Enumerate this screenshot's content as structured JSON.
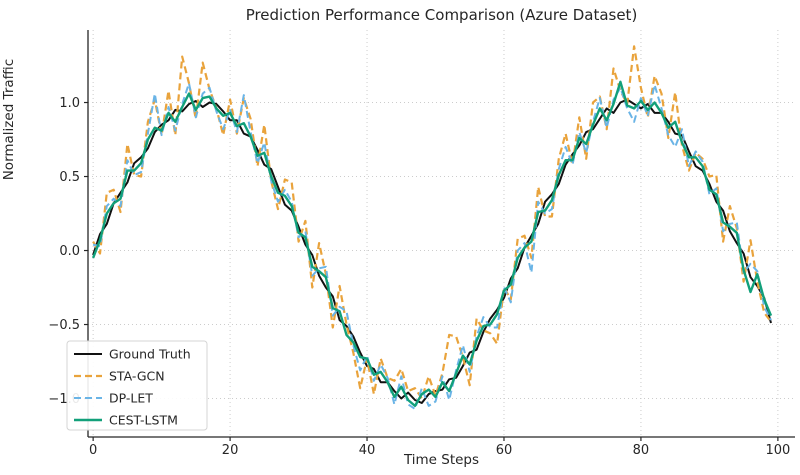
{
  "figure": {
    "title": "Prediction Performance Comparison (Azure Dataset)"
  },
  "chart_data": {
    "type": "line",
    "title": "Prediction Performance Comparison (Azure Dataset)",
    "xlabel": "Time Steps",
    "ylabel": "Normalized Traffic",
    "xlim": [
      -0.75,
      102.5
    ],
    "ylim": [
      -1.26,
      1.49
    ],
    "xticks": [
      0,
      20,
      40,
      60,
      80,
      100
    ],
    "xtick_labels": [
      "0",
      "20",
      "40",
      "60",
      "80",
      "100"
    ],
    "yticks": [
      -1.0,
      -0.5,
      0.0,
      0.5,
      1.0
    ],
    "ytick_labels": [
      "−1.0",
      "−0.5",
      "0.0",
      "0.5",
      "1.0"
    ],
    "grid": true,
    "grid_style": "dotted",
    "grid_color": "#cccccc",
    "axis_color": "#262626",
    "background": "#ffffff",
    "legend_position": "lower-left",
    "x": [
      0,
      1,
      2,
      3,
      4,
      5,
      6,
      7,
      8,
      9,
      10,
      11,
      12,
      13,
      14,
      15,
      16,
      17,
      18,
      19,
      20,
      21,
      22,
      23,
      24,
      25,
      26,
      27,
      28,
      29,
      30,
      31,
      32,
      33,
      34,
      35,
      36,
      37,
      38,
      39,
      40,
      41,
      42,
      43,
      44,
      45,
      46,
      47,
      48,
      49,
      50,
      51,
      52,
      53,
      54,
      55,
      56,
      57,
      58,
      59,
      60,
      61,
      62,
      63,
      64,
      65,
      66,
      67,
      68,
      69,
      70,
      71,
      72,
      73,
      74,
      75,
      76,
      77,
      78,
      79,
      80,
      81,
      82,
      83,
      84,
      85,
      86,
      87,
      88,
      89,
      90,
      91,
      92,
      93,
      94,
      95,
      96,
      97,
      98,
      99
    ],
    "series": [
      {
        "name": "Ground Truth",
        "color": "#111111",
        "style": "solid",
        "width": 2,
        "values": [
          -0.03,
          0.11,
          0.18,
          0.32,
          0.39,
          0.46,
          0.59,
          0.63,
          0.69,
          0.8,
          0.85,
          0.88,
          0.95,
          0.94,
          0.99,
          1.01,
          0.97,
          1.0,
          0.99,
          0.94,
          0.88,
          0.88,
          0.79,
          0.77,
          0.68,
          0.58,
          0.55,
          0.43,
          0.31,
          0.27,
          0.16,
          0.04,
          -0.03,
          -0.17,
          -0.25,
          -0.31,
          -0.47,
          -0.51,
          -0.58,
          -0.69,
          -0.78,
          -0.8,
          -0.89,
          -0.89,
          -0.95,
          -1.0,
          -0.96,
          -1.01,
          -1.03,
          -0.97,
          -0.95,
          -0.94,
          -0.87,
          -0.86,
          -0.78,
          -0.69,
          -0.67,
          -0.55,
          -0.46,
          -0.4,
          -0.32,
          -0.19,
          -0.12,
          0.02,
          0.1,
          0.18,
          0.33,
          0.38,
          0.45,
          0.58,
          0.65,
          0.71,
          0.8,
          0.82,
          0.89,
          0.96,
          0.93,
          1.0,
          1.02,
          0.99,
          0.96,
          0.99,
          0.93,
          0.93,
          0.87,
          0.79,
          0.78,
          0.67,
          0.57,
          0.54,
          0.45,
          0.33,
          0.27,
          0.13,
          0.05,
          -0.02,
          -0.18,
          -0.24,
          -0.32,
          -0.49
        ]
      },
      {
        "name": "STA-GCN",
        "color": "#E9A33C",
        "style": "dashed",
        "width": 2.2,
        "values": [
          0.06,
          -0.02,
          0.39,
          0.41,
          0.26,
          0.72,
          0.51,
          0.5,
          0.87,
          1.02,
          0.78,
          1.08,
          0.78,
          1.31,
          1.13,
          0.89,
          1.27,
          1.09,
          0.96,
          0.78,
          1.02,
          0.79,
          1.03,
          0.89,
          0.57,
          0.85,
          0.47,
          0.28,
          0.48,
          0.46,
          0.06,
          0.2,
          -0.25,
          0.05,
          -0.16,
          -0.52,
          -0.24,
          -0.5,
          -0.69,
          -0.93,
          -0.73,
          -0.97,
          -0.73,
          -0.86,
          -0.88,
          -0.8,
          -0.95,
          -0.93,
          -1.0,
          -0.85,
          -0.98,
          -0.83,
          -0.57,
          -0.58,
          -0.72,
          -0.91,
          -0.46,
          -0.54,
          -0.56,
          -0.63,
          -0.25,
          -0.33,
          0.08,
          0.1,
          -0.05,
          0.43,
          0.23,
          0.23,
          0.62,
          0.79,
          0.58,
          0.9,
          0.62,
          1.0,
          1.04,
          0.82,
          1.23,
          1.08,
          0.99,
          1.38,
          1.1,
          0.9,
          1.18,
          1.06,
          0.76,
          1.07,
          0.71,
          0.54,
          0.66,
          0.62,
          0.5,
          0.51,
          0.06,
          0.3,
          0.15,
          -0.21,
          0.07,
          -0.21,
          -0.42,
          -0.48
        ]
      },
      {
        "name": "DP-LET",
        "color": "#6AB4E6",
        "style": "dashed",
        "width": 2,
        "values": [
          0.04,
          0.03,
          0.3,
          0.35,
          0.3,
          0.61,
          0.51,
          0.53,
          0.79,
          1.06,
          0.78,
          0.97,
          0.81,
          0.99,
          1.13,
          0.9,
          1.06,
          1.1,
          0.94,
          0.82,
          0.95,
          0.8,
          1.05,
          0.8,
          0.59,
          0.73,
          0.47,
          0.33,
          0.41,
          0.33,
          0.09,
          0.13,
          -0.17,
          -0.12,
          -0.11,
          -0.44,
          -0.38,
          -0.41,
          -0.64,
          -0.81,
          -0.71,
          -0.88,
          -0.77,
          -0.86,
          -1.04,
          -0.85,
          -1.04,
          -1.07,
          -0.93,
          -1.05,
          -1.02,
          -0.85,
          -1.01,
          -0.81,
          -0.64,
          -0.82,
          -0.58,
          -0.45,
          -0.52,
          -0.52,
          -0.25,
          -0.35,
          0.0,
          0.05,
          -0.15,
          0.33,
          0.25,
          0.28,
          0.55,
          0.7,
          0.58,
          0.8,
          0.66,
          0.87,
          1.03,
          0.83,
          1.02,
          1.1,
          0.96,
          0.87,
          1.03,
          0.91,
          1.12,
          0.96,
          0.78,
          0.7,
          0.82,
          0.57,
          0.67,
          0.6,
          0.38,
          0.42,
          0.13,
          0.18,
          0.19,
          -0.15,
          -0.09,
          -0.14,
          -0.38,
          -0.47
        ]
      },
      {
        "name": "CEST-LSTM",
        "color": "#12A07A",
        "style": "solid",
        "width": 2.4,
        "values": [
          -0.05,
          0.07,
          0.25,
          0.32,
          0.35,
          0.54,
          0.54,
          0.59,
          0.75,
          0.83,
          0.81,
          0.93,
          0.87,
          0.97,
          1.06,
          0.95,
          1.03,
          1.04,
          0.96,
          0.91,
          0.93,
          0.84,
          0.86,
          0.77,
          0.64,
          0.66,
          0.5,
          0.39,
          0.37,
          0.3,
          0.12,
          0.09,
          -0.11,
          -0.14,
          -0.18,
          -0.39,
          -0.41,
          -0.57,
          -0.62,
          -0.72,
          -0.73,
          -0.84,
          -0.82,
          -0.89,
          -0.99,
          -0.92,
          -1.01,
          -1.05,
          -0.97,
          -0.94,
          -0.99,
          -0.89,
          -0.95,
          -0.83,
          -0.71,
          -0.77,
          -0.61,
          -0.51,
          -0.5,
          -0.43,
          -0.27,
          -0.23,
          -0.05,
          0.02,
          0.06,
          0.26,
          0.27,
          0.34,
          0.51,
          0.61,
          0.61,
          0.76,
          0.72,
          0.85,
          0.96,
          0.88,
          0.99,
          1.14,
          0.98,
          0.96,
          1.01,
          0.95,
          1.0,
          0.93,
          0.83,
          0.87,
          0.73,
          0.63,
          0.63,
          0.57,
          0.41,
          0.38,
          0.19,
          0.16,
          0.12,
          -0.13,
          -0.28,
          -0.16,
          -0.33,
          -0.44
        ]
      }
    ],
    "legend": {
      "entries": [
        "Ground Truth",
        "STA-GCN",
        "DP-LET",
        "CEST-LSTM"
      ]
    }
  }
}
